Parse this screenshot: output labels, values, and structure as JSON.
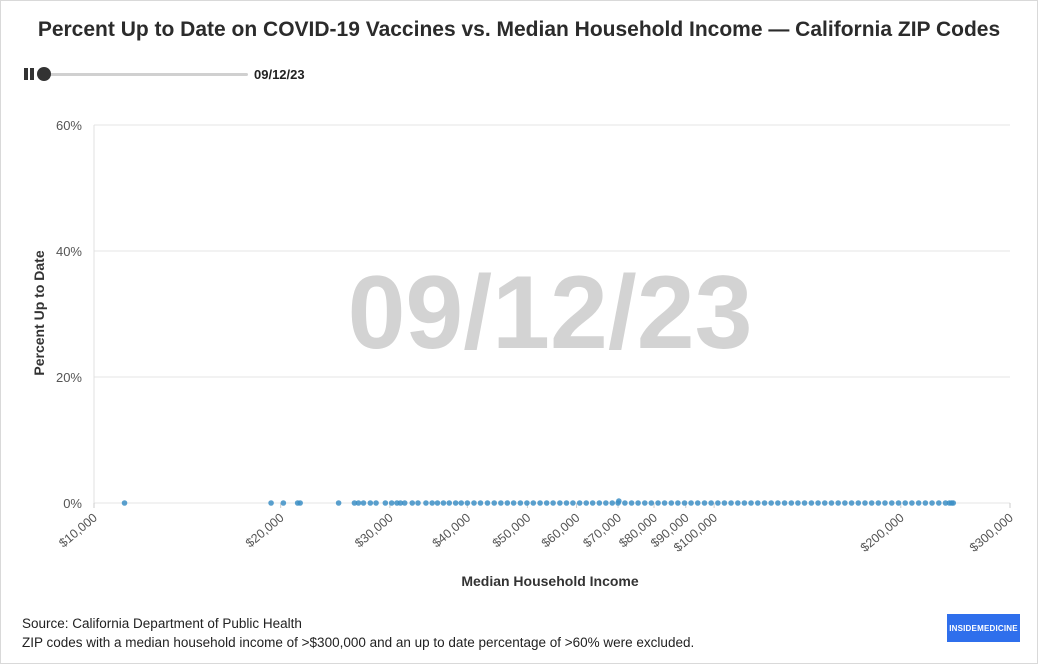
{
  "title": "Percent Up to Date on COVID-19 Vaccines vs. Median Household Income — California ZIP Codes",
  "player": {
    "current_date": "09/12/23",
    "progress": 0.0
  },
  "watermark": "09/12/23",
  "source": "Source: California Department of Public Health",
  "note": "ZIP codes with a median household income of >$300,000 and an up to date percentage of >60% were excluded.",
  "logo_text": "INSIDEMEDICINE",
  "chart_data": {
    "type": "scatter",
    "title": "Percent Up to Date on COVID-19 Vaccines vs. Median Household Income — California ZIP Codes",
    "xlabel": "Median Household Income",
    "ylabel": "Percent Up to Date",
    "x_scale": "log",
    "xlim": [
      10000,
      300000
    ],
    "ylim": [
      0,
      60
    ],
    "x_ticks": [
      10000,
      20000,
      30000,
      40000,
      50000,
      60000,
      70000,
      80000,
      90000,
      100000,
      200000,
      300000
    ],
    "x_tick_labels": [
      "$10,000",
      "$20,000",
      "$30,000",
      "$40,000",
      "$50,000",
      "$60,000",
      "$70,000",
      "$80,000",
      "$90,000",
      "$100,000",
      "$200,000",
      "$300,000"
    ],
    "y_ticks": [
      0,
      20,
      40,
      60
    ],
    "y_tick_labels": [
      "0%",
      "20%",
      "40%",
      "60%"
    ],
    "grid": true,
    "point_color": "#3d8fc6",
    "series": [
      {
        "x": [
          11200,
          19300,
          20200,
          21300,
          21500,
          24800,
          26300,
          26700,
          27200,
          27900,
          28500,
          29500,
          30200,
          30800,
          31200,
          31700,
          32600,
          33300,
          34300,
          35100,
          35800,
          36600,
          37400,
          38300,
          39100,
          40000,
          41000,
          42000,
          43100,
          44200,
          45300,
          46400,
          47500,
          48700,
          49900,
          51100,
          52400,
          53700,
          55000,
          56400,
          57800,
          59200,
          60700,
          62200,
          63700,
          65300,
          66900,
          68500,
          70000,
          70200,
          71800,
          73600,
          75400,
          77300,
          79200,
          81200,
          83200,
          85300,
          87400,
          89600,
          91800,
          94100,
          96500,
          98900,
          101400,
          103900,
          106500,
          109200,
          111900,
          114700,
          117600,
          120600,
          123600,
          126700,
          129900,
          133200,
          136500,
          139900,
          143500,
          147100,
          150800,
          154600,
          158500,
          162500,
          166600,
          170800,
          175100,
          179500,
          184000,
          188600,
          193400,
          198300,
          203300,
          208400,
          213700,
          219100,
          224600,
          230300,
          236100,
          239600,
          241500,
          243000
        ],
        "y": [
          0,
          0,
          0,
          0,
          0,
          0,
          0,
          0,
          0,
          0,
          0,
          0,
          0,
          0,
          0,
          0,
          0,
          0,
          0,
          0,
          0,
          0,
          0,
          0,
          0,
          0,
          0,
          0,
          0,
          0,
          0,
          0,
          0,
          0,
          0,
          0,
          0,
          0,
          0,
          0,
          0,
          0,
          0,
          0,
          0,
          0,
          0,
          0,
          0,
          0.3,
          0,
          0,
          0,
          0,
          0,
          0,
          0,
          0,
          0,
          0,
          0,
          0,
          0,
          0,
          0,
          0,
          0,
          0,
          0,
          0,
          0,
          0,
          0,
          0,
          0,
          0,
          0,
          0,
          0,
          0,
          0,
          0,
          0,
          0,
          0,
          0,
          0,
          0,
          0,
          0,
          0,
          0,
          0,
          0,
          0,
          0,
          0,
          0,
          0,
          0,
          0,
          0
        ]
      }
    ]
  }
}
